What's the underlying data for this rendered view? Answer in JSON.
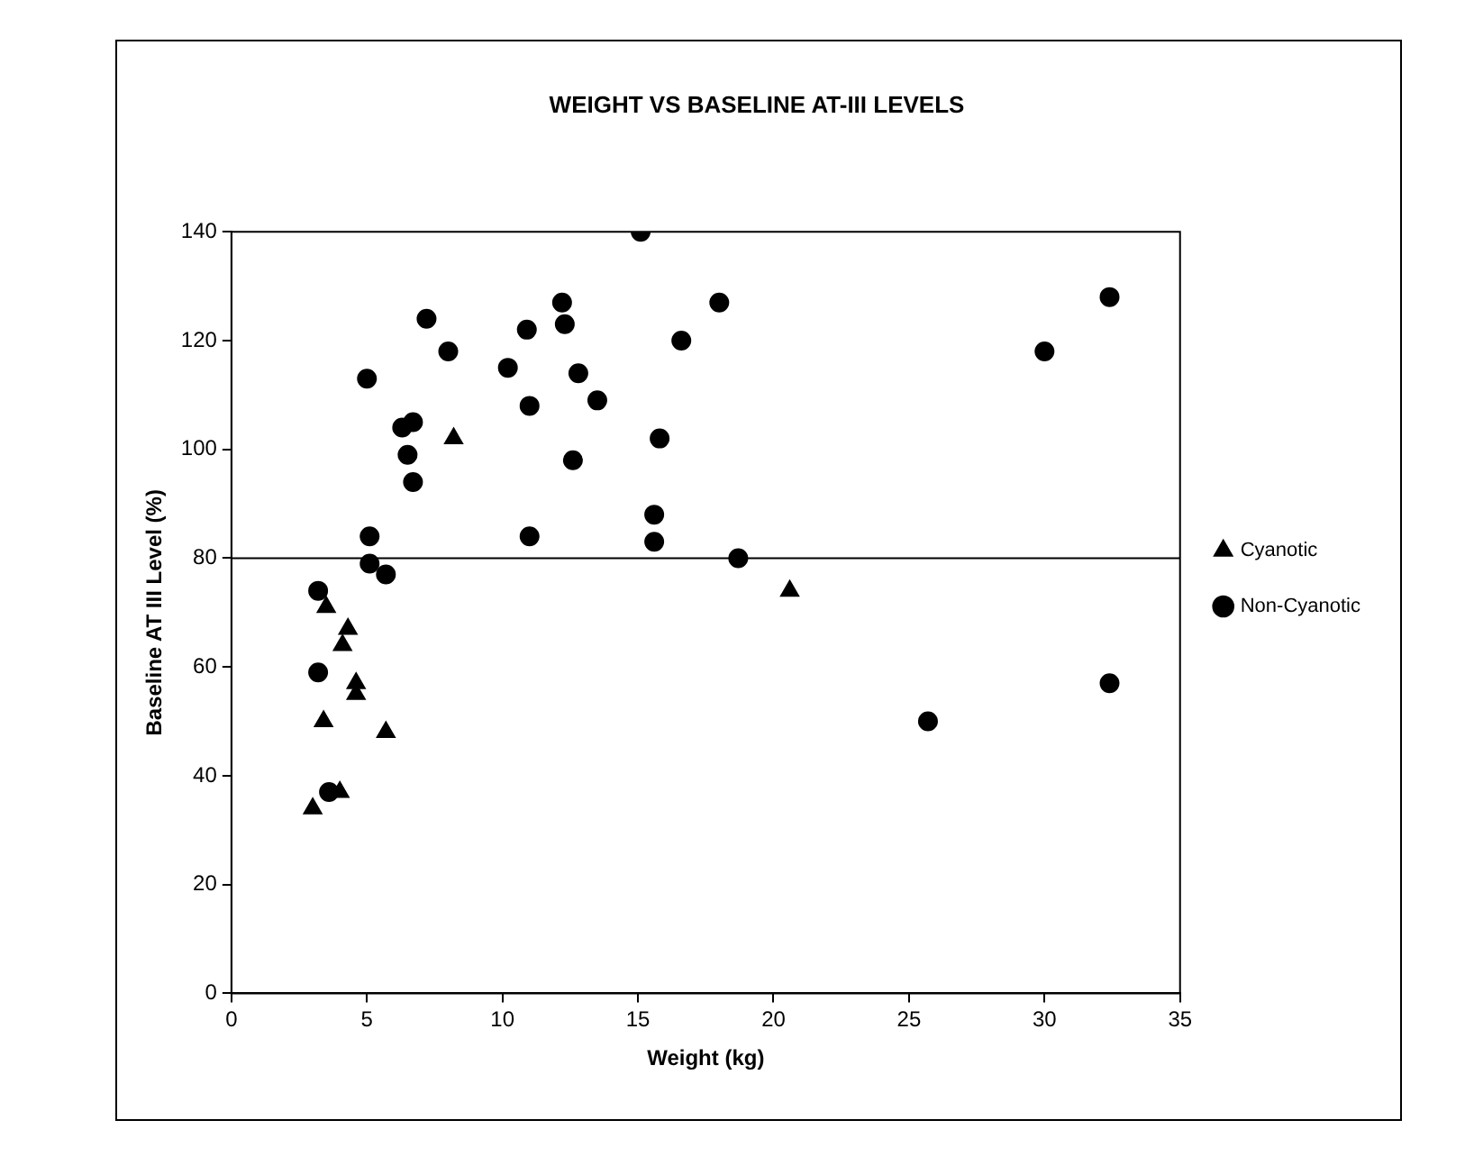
{
  "chart_data": {
    "type": "scatter",
    "title": "WEIGHT VS BASELINE AT-III LEVELS",
    "xlabel": "Weight (kg)",
    "ylabel": "Baseline AT III Level (%)",
    "xlim": [
      0,
      35
    ],
    "xticks": [
      0,
      5,
      10,
      15,
      20,
      25,
      30,
      35
    ],
    "ylim": [
      0,
      140
    ],
    "yticks": [
      0,
      20,
      40,
      60,
      80,
      100,
      120,
      140
    ],
    "grid": false,
    "legend": "right",
    "ref_lines": [
      {
        "axis": "y",
        "value": 80,
        "color": "#000000"
      }
    ],
    "series": [
      {
        "name": "Cyanotic",
        "color": "#000000",
        "marker": "triangle",
        "x": [
          8.2,
          3.5,
          4.3,
          4.1,
          4.6,
          4.6,
          3.4,
          5.7,
          4.0,
          3.0,
          20.6
        ],
        "values": [
          102,
          71,
          67,
          64,
          57,
          55,
          50,
          48,
          37,
          34,
          74
        ]
      },
      {
        "name": "Non-Cyanotic",
        "color": "#000000",
        "marker": "circle",
        "x": [
          15.1,
          7.2,
          8.0,
          5.0,
          10.9,
          10.2,
          12.2,
          12.3,
          12.8,
          13.5,
          11.0,
          16.6,
          18.0,
          6.7,
          6.3,
          6.5,
          6.7,
          15.8,
          12.6,
          15.6,
          15.6,
          5.1,
          11.0,
          5.1,
          5.7,
          3.2,
          3.2,
          3.6,
          18.7,
          30.0,
          32.4,
          32.4,
          25.7
        ],
        "values": [
          140,
          124,
          118,
          113,
          122,
          115,
          127,
          123,
          114,
          109,
          108,
          120,
          127,
          105,
          104,
          99,
          94,
          102,
          98,
          88,
          83,
          84,
          84,
          79,
          77,
          74,
          59,
          37,
          80,
          118,
          128,
          57,
          50
        ]
      }
    ]
  }
}
